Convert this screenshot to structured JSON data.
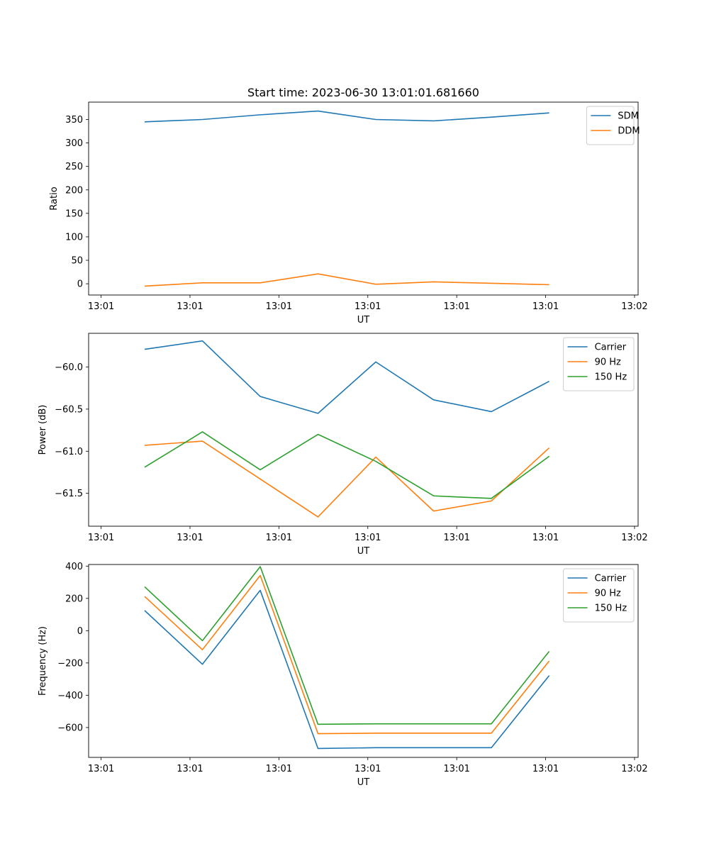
{
  "figure": {
    "title": "Start time: 2023-06-30 13:01:01.681660"
  },
  "colors": {
    "c0": "#1f77b4",
    "c1": "#ff7f0e",
    "c2": "#2ca02c"
  },
  "chart_data": [
    {
      "type": "line",
      "title": "Start time: 2023-06-30 13:01:01.681660",
      "xlabel": "UT",
      "ylabel": "Ratio",
      "x_ticks": [
        0,
        1,
        2,
        3,
        4,
        5,
        6
      ],
      "x_tick_labels": [
        "13:01",
        "13:01",
        "13:01",
        "13:01",
        "13:01",
        "13:01",
        "13:02"
      ],
      "xlim": [
        -0.14,
        6.04
      ],
      "x": [
        0.49,
        1.14,
        1.79,
        2.44,
        3.09,
        3.74,
        4.39,
        5.04
      ],
      "y_ticks": [
        0,
        50,
        100,
        150,
        200,
        250,
        300,
        350
      ],
      "ylim": [
        -24,
        387
      ],
      "legend": "top-right",
      "series": [
        {
          "name": "SDM",
          "color": "c0",
          "values": [
            345,
            350,
            360,
            368,
            350,
            347,
            355,
            364
          ]
        },
        {
          "name": "DDM",
          "color": "c1",
          "values": [
            -5,
            2,
            2,
            21,
            -1,
            4,
            1,
            -2
          ]
        }
      ]
    },
    {
      "type": "line",
      "xlabel": "UT",
      "ylabel": "Power (dB)",
      "x_ticks": [
        0,
        1,
        2,
        3,
        4,
        5,
        6
      ],
      "x_tick_labels": [
        "13:01",
        "13:01",
        "13:01",
        "13:01",
        "13:01",
        "13:01",
        "13:02"
      ],
      "xlim": [
        -0.14,
        6.04
      ],
      "x": [
        0.49,
        1.14,
        1.79,
        2.44,
        3.09,
        3.74,
        4.39,
        5.04
      ],
      "y_ticks": [
        -61.5,
        -61.0,
        -60.5,
        -60.0
      ],
      "y_tick_labels": [
        "−61.5",
        "−61.0",
        "−60.5",
        "−60.0"
      ],
      "ylim": [
        -61.89,
        -59.6
      ],
      "legend": "top-right",
      "series": [
        {
          "name": "Carrier",
          "color": "c0",
          "values": [
            -59.79,
            -59.69,
            -60.35,
            -60.55,
            -59.94,
            -60.39,
            -60.53,
            -60.17
          ]
        },
        {
          "name": "90 Hz",
          "color": "c1",
          "values": [
            -60.93,
            -60.88,
            -61.33,
            -61.78,
            -61.07,
            -61.71,
            -61.59,
            -60.96
          ]
        },
        {
          "name": "150 Hz",
          "color": "c2",
          "values": [
            -61.19,
            -60.77,
            -61.22,
            -60.8,
            -61.12,
            -61.53,
            -61.56,
            -61.06
          ]
        }
      ]
    },
    {
      "type": "line",
      "xlabel": "UT",
      "ylabel": "Frequency (Hz)",
      "x_ticks": [
        0,
        1,
        2,
        3,
        4,
        5,
        6
      ],
      "x_tick_labels": [
        "13:01",
        "13:01",
        "13:01",
        "13:01",
        "13:01",
        "13:01",
        "13:02"
      ],
      "xlim": [
        -0.14,
        6.04
      ],
      "x": [
        0.49,
        1.14,
        1.79,
        2.44,
        3.09,
        3.74,
        4.39,
        5.04
      ],
      "y_ticks": [
        -600,
        -400,
        -200,
        0,
        200,
        400
      ],
      "y_tick_labels": [
        "−600",
        "−400",
        "−200",
        "0",
        "200",
        "400"
      ],
      "ylim": [
        -785,
        410
      ],
      "legend": "top-right",
      "series": [
        {
          "name": "Carrier",
          "color": "c0",
          "values": [
            125,
            -208,
            250,
            -730,
            -725,
            -725,
            -725,
            -278
          ]
        },
        {
          "name": "90 Hz",
          "color": "c1",
          "values": [
            212,
            -118,
            342,
            -638,
            -635,
            -635,
            -635,
            -188
          ]
        },
        {
          "name": "150 Hz",
          "color": "c2",
          "values": [
            272,
            -62,
            397,
            -580,
            -577,
            -577,
            -577,
            -128
          ]
        }
      ]
    }
  ]
}
